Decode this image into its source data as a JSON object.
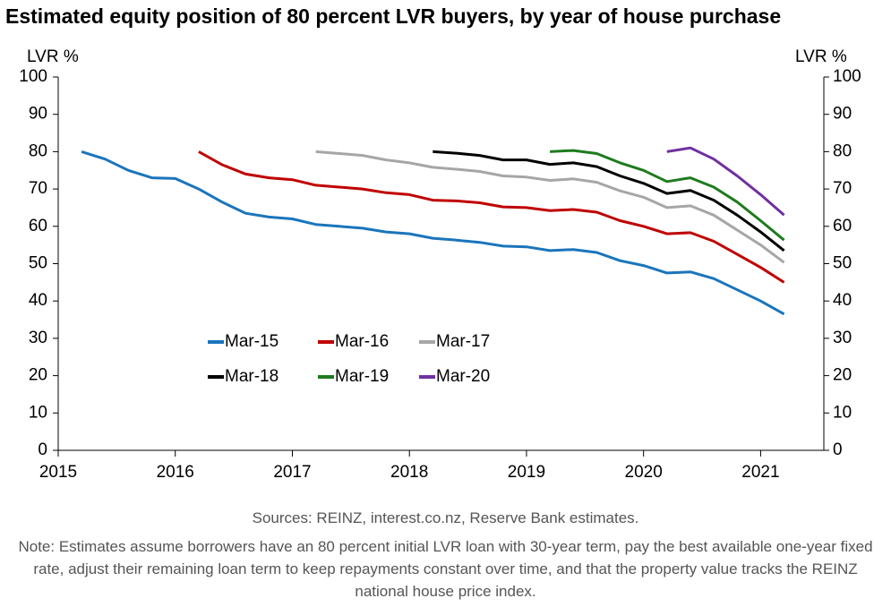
{
  "chart_data": {
    "type": "line",
    "title": "Estimated equity position of 80 percent LVR buyers, by year of house purchase",
    "y_label": "LVR %",
    "y2_label": "LVR %",
    "x": [
      2015.2,
      2015.4,
      2015.6,
      2015.8,
      2016.0,
      2016.2,
      2016.4,
      2016.6,
      2016.8,
      2017.0,
      2017.2,
      2017.4,
      2017.6,
      2017.8,
      2018.0,
      2018.2,
      2018.4,
      2018.6,
      2018.8,
      2019.0,
      2019.2,
      2019.4,
      2019.6,
      2019.8,
      2020.0,
      2020.2,
      2020.4,
      2020.6,
      2020.8,
      2021.0,
      2021.2
    ],
    "series": [
      {
        "name": "Mar-15",
        "color": "#1a75bc",
        "values": [
          80,
          78,
          75,
          73,
          72.8,
          70,
          66.5,
          63.5,
          62.5,
          62,
          60.5,
          60,
          59.5,
          58.5,
          58,
          56.8,
          56.3,
          55.7,
          54.7,
          54.5,
          53.5,
          53.8,
          53,
          50.8,
          49.5,
          47.5,
          47.8,
          46,
          43,
          40,
          36.5
        ]
      },
      {
        "name": "Mar-16",
        "color": "#c00000",
        "values": [
          null,
          null,
          null,
          null,
          null,
          80,
          76.5,
          74,
          73,
          72.5,
          71,
          70.5,
          70,
          69,
          68.5,
          67,
          66.8,
          66.3,
          65.2,
          65,
          64.2,
          64.5,
          63.8,
          61.5,
          60,
          58,
          58.3,
          56,
          52.5,
          49,
          45
        ]
      },
      {
        "name": "Mar-17",
        "color": "#a6a6a6",
        "values": [
          null,
          null,
          null,
          null,
          null,
          null,
          null,
          null,
          null,
          null,
          80,
          79.5,
          79,
          77.8,
          77,
          75.8,
          75.3,
          74.7,
          73.5,
          73.2,
          72.3,
          72.7,
          71.8,
          69.5,
          67.8,
          65,
          65.5,
          63,
          59,
          55,
          50.3
        ]
      },
      {
        "name": "Mar-18",
        "color": "#000000",
        "values": [
          null,
          null,
          null,
          null,
          null,
          null,
          null,
          null,
          null,
          null,
          null,
          null,
          null,
          null,
          null,
          80,
          79.6,
          79,
          77.8,
          77.8,
          76.6,
          77,
          76,
          73.5,
          71.5,
          68.8,
          69.6,
          67,
          63,
          58.5,
          53.5
        ]
      },
      {
        "name": "Mar-19",
        "color": "#1e7b1e",
        "values": [
          null,
          null,
          null,
          null,
          null,
          null,
          null,
          null,
          null,
          null,
          null,
          null,
          null,
          null,
          null,
          null,
          null,
          null,
          null,
          null,
          80,
          80.3,
          79.5,
          77,
          75,
          72,
          73,
          70.5,
          66.5,
          61.5,
          56.3
        ]
      },
      {
        "name": "Mar-20",
        "color": "#7030a0",
        "values": [
          null,
          null,
          null,
          null,
          null,
          null,
          null,
          null,
          null,
          null,
          null,
          null,
          null,
          null,
          null,
          null,
          null,
          null,
          null,
          null,
          null,
          null,
          null,
          null,
          null,
          80,
          81,
          78,
          73.5,
          68.5,
          63
        ]
      }
    ],
    "xlim": [
      2015,
      2021.54
    ],
    "xticks": [
      2015,
      2016,
      2017,
      2018,
      2019,
      2020,
      2021
    ],
    "ylim": [
      0,
      100
    ],
    "yticks": [
      0,
      10,
      20,
      30,
      40,
      50,
      60,
      70,
      80,
      90,
      100
    ],
    "y2lim": [
      0,
      100
    ],
    "y2ticks": [
      0,
      10,
      20,
      30,
      40,
      50,
      60,
      70,
      80,
      90,
      100
    ],
    "grid": false,
    "legend": "inside-lower-left",
    "source": "Sources: REINZ, interest.co.nz, Reserve Bank estimates.",
    "note": "Note: Estimates assume borrowers have an 80 percent initial LVR loan with 30-year term, pay the best available one-year fixed rate, adjust their remaining loan term to keep repayments constant over time, and that the property value tracks the REINZ national house price index."
  }
}
